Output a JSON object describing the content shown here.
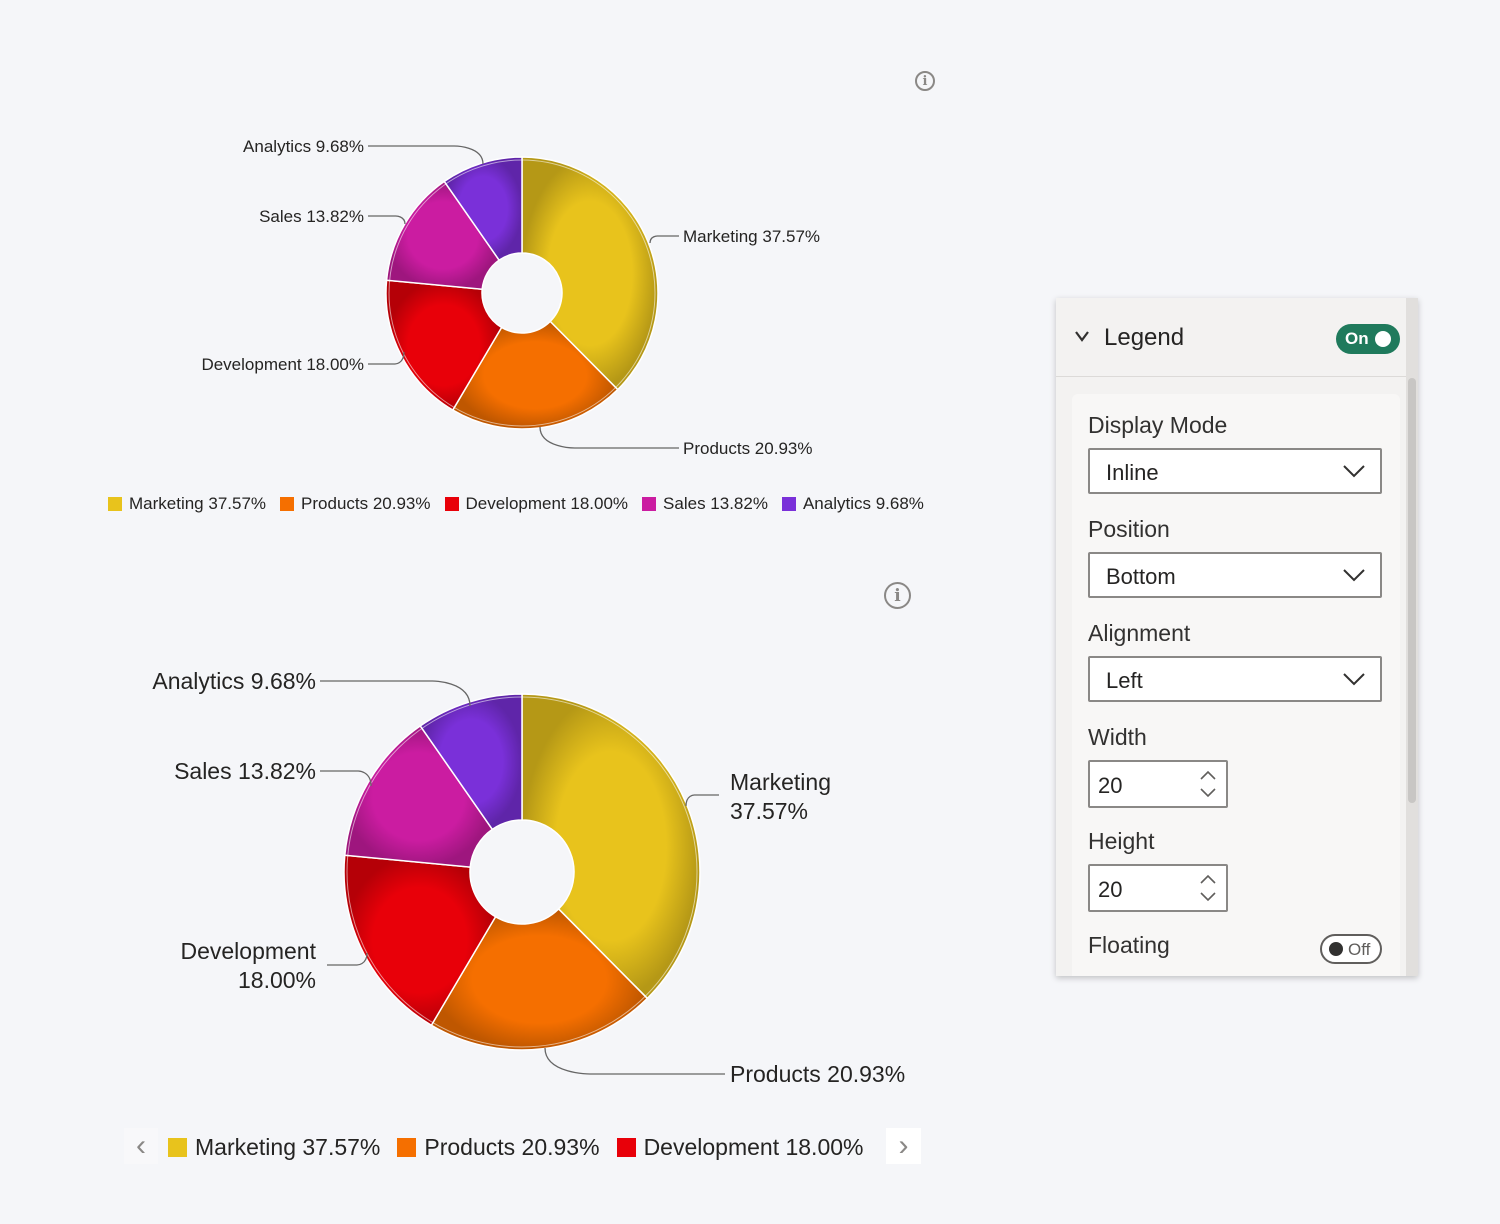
{
  "colors": {
    "marketing": "#e8c31c",
    "products": "#f56f00",
    "development": "#e80009",
    "sales": "#cb1ca1",
    "analytics": "#7a30d9"
  },
  "chart_data": [
    {
      "type": "pie",
      "subtype": "donut",
      "title": "",
      "categories": [
        "Marketing",
        "Products",
        "Development",
        "Sales",
        "Analytics"
      ],
      "values": [
        37.57,
        20.93,
        18.0,
        13.82,
        9.68
      ],
      "unit": "%",
      "data_labels": [
        "Marketing 37.57%",
        "Products 20.93%",
        "Development 18.00%",
        "Sales 13.82%",
        "Analytics 9.68%"
      ],
      "legend": {
        "position": "bottom",
        "display_mode": "inline",
        "entries": [
          "Marketing 37.57%",
          "Products 20.93%",
          "Development 18.00%",
          "Sales 13.82%",
          "Analytics 9.68%"
        ]
      }
    },
    {
      "type": "pie",
      "subtype": "donut",
      "title": "",
      "categories": [
        "Marketing",
        "Products",
        "Development",
        "Sales",
        "Analytics"
      ],
      "values": [
        37.57,
        20.93,
        18.0,
        13.82,
        9.68
      ],
      "unit": "%",
      "data_labels": [
        [
          "Marketing",
          "37.57%"
        ],
        [
          "Products 20.93%"
        ],
        [
          "Development",
          "18.00%"
        ],
        [
          "Sales 13.82%"
        ],
        [
          "Analytics 9.68%"
        ]
      ],
      "legend": {
        "position": "bottom",
        "display_mode": "inline",
        "paged": true,
        "entries": [
          "Marketing 37.57%",
          "Products 20.93%",
          "Development 18.00%"
        ]
      }
    }
  ],
  "icons": {
    "info": "info-icon",
    "prev": "chevron-left-icon",
    "next": "chevron-right-icon",
    "collapse": "chevron-down-icon",
    "dropdown": "chevron-down-icon",
    "spinner": "spinner-arrows-icon"
  },
  "info_symbol": "i",
  "prev_glyph": "‹",
  "next_glyph": "›",
  "panel": {
    "title": "Legend",
    "toggle_label": "On",
    "display_mode": {
      "label": "Display Mode",
      "value": "Inline"
    },
    "position": {
      "label": "Position",
      "value": "Bottom"
    },
    "alignment": {
      "label": "Alignment",
      "value": "Left"
    },
    "width": {
      "label": "Width",
      "value": "20"
    },
    "height": {
      "label": "Height",
      "value": "20"
    },
    "floating": {
      "label": "Floating",
      "toggle_label": "Off"
    }
  }
}
